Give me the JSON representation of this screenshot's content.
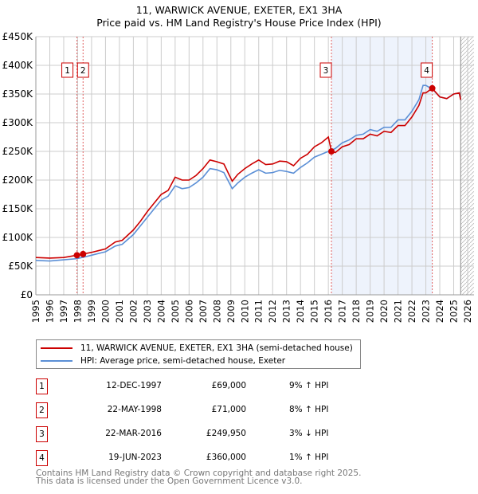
{
  "chart_data": {
    "type": "line",
    "title": "11, WARWICK AVENUE, EXETER, EX1 3HA",
    "subtitle": "Price paid vs. HM Land Registry's House Price Index (HPI)",
    "xlim": [
      1995,
      2026
    ],
    "ylim": [
      0,
      450000
    ],
    "x_ticks": [
      "1995",
      "1996",
      "1997",
      "1998",
      "1999",
      "2000",
      "2001",
      "2002",
      "2003",
      "2004",
      "2005",
      "2006",
      "2007",
      "2008",
      "2009",
      "2010",
      "2011",
      "2012",
      "2013",
      "2014",
      "2015",
      "2016",
      "2017",
      "2018",
      "2019",
      "2020",
      "2021",
      "2022",
      "2023",
      "2024",
      "2025",
      "2026"
    ],
    "y_ticks": [
      {
        "v": 0,
        "label": "£0"
      },
      {
        "v": 50000,
        "label": "£50K"
      },
      {
        "v": 100000,
        "label": "£100K"
      },
      {
        "v": 150000,
        "label": "£150K"
      },
      {
        "v": 200000,
        "label": "£200K"
      },
      {
        "v": 250000,
        "label": "£250K"
      },
      {
        "v": 300000,
        "label": "£300K"
      },
      {
        "v": 350000,
        "label": "£350K"
      },
      {
        "v": 400000,
        "label": "£400K"
      },
      {
        "v": 450000,
        "label": "£450K"
      }
    ],
    "grid": true,
    "shaded_range": [
      2016.22,
      2023.46
    ],
    "hatched_from": 2025.5,
    "series": [
      {
        "name": "11, WARWICK AVENUE, EXETER, EX1 3HA (semi-detached house)",
        "color": "#cc0000",
        "points": [
          [
            1995,
            65000
          ],
          [
            1996,
            64000
          ],
          [
            1997,
            65000
          ],
          [
            1997.95,
            69000
          ],
          [
            1998.39,
            71000
          ],
          [
            1999,
            74000
          ],
          [
            2000,
            80000
          ],
          [
            2000.7,
            92000
          ],
          [
            2001.2,
            95000
          ],
          [
            2002,
            113000
          ],
          [
            2002.5,
            128000
          ],
          [
            2003,
            145000
          ],
          [
            2003.5,
            160000
          ],
          [
            2004,
            175000
          ],
          [
            2004.5,
            182000
          ],
          [
            2005,
            205000
          ],
          [
            2005.5,
            200000
          ],
          [
            2006,
            200000
          ],
          [
            2006.5,
            208000
          ],
          [
            2007,
            220000
          ],
          [
            2007.5,
            235000
          ],
          [
            2008,
            232000
          ],
          [
            2008.5,
            228000
          ],
          [
            2009.1,
            198000
          ],
          [
            2009.5,
            210000
          ],
          [
            2010,
            220000
          ],
          [
            2010.5,
            228000
          ],
          [
            2011,
            235000
          ],
          [
            2011.5,
            227000
          ],
          [
            2012,
            228000
          ],
          [
            2012.5,
            233000
          ],
          [
            2013,
            232000
          ],
          [
            2013.5,
            225000
          ],
          [
            2014,
            238000
          ],
          [
            2014.5,
            245000
          ],
          [
            2015,
            258000
          ],
          [
            2015.5,
            265000
          ],
          [
            2016,
            275000
          ],
          [
            2016.22,
            249950
          ],
          [
            2016.5,
            248000
          ],
          [
            2017,
            258000
          ],
          [
            2017.5,
            262000
          ],
          [
            2018,
            272000
          ],
          [
            2018.5,
            272000
          ],
          [
            2019,
            280000
          ],
          [
            2019.5,
            277000
          ],
          [
            2020,
            285000
          ],
          [
            2020.5,
            283000
          ],
          [
            2021,
            295000
          ],
          [
            2021.5,
            295000
          ],
          [
            2022,
            310000
          ],
          [
            2022.5,
            330000
          ],
          [
            2022.8,
            352000
          ],
          [
            2023,
            352000
          ],
          [
            2023.46,
            360000
          ],
          [
            2024,
            345000
          ],
          [
            2024.5,
            342000
          ],
          [
            2025,
            350000
          ],
          [
            2025.4,
            352000
          ],
          [
            2025.5,
            340000
          ]
        ]
      },
      {
        "name": "HPI: Average price, semi-detached house, Exeter",
        "color": "#5b8fd6",
        "points": [
          [
            1995,
            60000
          ],
          [
            1996,
            59000
          ],
          [
            1997,
            61000
          ],
          [
            1997.95,
            63000
          ],
          [
            1998.5,
            66000
          ],
          [
            1999,
            69000
          ],
          [
            2000,
            75000
          ],
          [
            2000.7,
            85000
          ],
          [
            2001.2,
            88000
          ],
          [
            2002,
            105000
          ],
          [
            2002.5,
            120000
          ],
          [
            2003,
            135000
          ],
          [
            2003.5,
            150000
          ],
          [
            2004,
            165000
          ],
          [
            2004.5,
            172000
          ],
          [
            2005,
            190000
          ],
          [
            2005.5,
            185000
          ],
          [
            2006,
            187000
          ],
          [
            2006.5,
            195000
          ],
          [
            2007,
            205000
          ],
          [
            2007.5,
            220000
          ],
          [
            2008,
            218000
          ],
          [
            2008.5,
            213000
          ],
          [
            2009.1,
            185000
          ],
          [
            2009.5,
            195000
          ],
          [
            2010,
            205000
          ],
          [
            2010.5,
            212000
          ],
          [
            2011,
            218000
          ],
          [
            2011.5,
            212000
          ],
          [
            2012,
            213000
          ],
          [
            2012.5,
            217000
          ],
          [
            2013,
            215000
          ],
          [
            2013.5,
            212000
          ],
          [
            2014,
            222000
          ],
          [
            2014.5,
            230000
          ],
          [
            2015,
            240000
          ],
          [
            2015.5,
            245000
          ],
          [
            2016,
            250000
          ],
          [
            2016.5,
            255000
          ],
          [
            2017,
            265000
          ],
          [
            2017.5,
            270000
          ],
          [
            2018,
            278000
          ],
          [
            2018.5,
            280000
          ],
          [
            2019,
            288000
          ],
          [
            2019.5,
            285000
          ],
          [
            2020,
            292000
          ],
          [
            2020.5,
            292000
          ],
          [
            2021,
            305000
          ],
          [
            2021.5,
            305000
          ],
          [
            2022,
            320000
          ],
          [
            2022.5,
            340000
          ],
          [
            2022.8,
            365000
          ],
          [
            2023,
            365000
          ],
          [
            2023.5,
            358000
          ],
          [
            2024,
            345000
          ],
          [
            2024.5,
            342000
          ],
          [
            2025,
            350000
          ],
          [
            2025.4,
            352000
          ],
          [
            2025.5,
            340000
          ]
        ]
      }
    ],
    "sales": [
      {
        "id": "1",
        "x": 1997.95,
        "y": 69000,
        "date": "12-DEC-1997",
        "price": "£69,000",
        "hpi": "9% ↑ HPI"
      },
      {
        "id": "2",
        "x": 1998.39,
        "y": 71000,
        "date": "22-MAY-1998",
        "price": "£71,000",
        "hpi": "8% ↑ HPI"
      },
      {
        "id": "3",
        "x": 2016.22,
        "y": 249950,
        "date": "22-MAR-2016",
        "price": "£249,950",
        "hpi": "3% ↓ HPI"
      },
      {
        "id": "4",
        "x": 2023.46,
        "y": 360000,
        "date": "19-JUN-2023",
        "price": "£360,000",
        "hpi": "1% ↑ HPI"
      }
    ]
  },
  "footer": {
    "line1": "Contains HM Land Registry data © Crown copyright and database right 2025.",
    "line2": "This data is licensed under the Open Government Licence v3.0."
  }
}
